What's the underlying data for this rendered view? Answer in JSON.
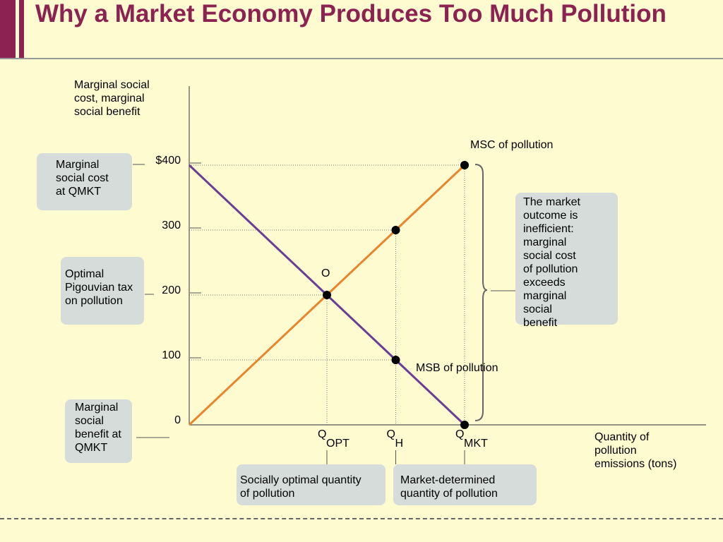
{
  "title": "Why a Market Economy Produces Too Much Pollution",
  "colors": {
    "msc": "#e8852f",
    "msb": "#6a3d96",
    "accent": "#8b2252",
    "box": "#d5dcd9",
    "background": "#fffbd0"
  },
  "chart_data": {
    "type": "line",
    "ylabel": "Marginal social\ncost, marginal\nsocial benefit",
    "xlabel": "Quantity of\npollution\n emissions (tons)",
    "y_ticks": [
      "$400",
      "300",
      "200",
      "100",
      "0"
    ],
    "y_tick_values": [
      400,
      300,
      200,
      100,
      0
    ],
    "ylim": [
      0,
      400
    ],
    "x_ticks": [
      {
        "q": "Q",
        "sub": "OPT",
        "x": 1
      },
      {
        "q": "Q",
        "sub": "H",
        "x": 1.5
      },
      {
        "q": "Q",
        "sub": "MKT",
        "x": 2
      }
    ],
    "xlim": [
      0,
      2
    ],
    "series": [
      {
        "name": "MSC of pollution",
        "x": [
          0,
          1,
          1.5,
          2
        ],
        "y": [
          0,
          200,
          300,
          400
        ]
      },
      {
        "name": "MSB of pollution",
        "x": [
          0,
          1,
          1.5,
          2
        ],
        "y": [
          400,
          200,
          100,
          0
        ]
      }
    ],
    "points": [
      {
        "x": 2,
        "y": 400
      },
      {
        "x": 1.5,
        "y": 300
      },
      {
        "x": 1,
        "y": 200,
        "label": "O"
      },
      {
        "x": 1.5,
        "y": 100
      },
      {
        "x": 2,
        "y": 0
      }
    ],
    "grid": false
  },
  "annotations": {
    "msc_at_qmkt": "Marginal\nsocial cost\nat QMKT",
    "pigouvian_tax": "Optimal\nPigouvian tax\non pollution",
    "msb_at_qmkt": "Marginal\nsocial\nbenefit at\nQMKT",
    "inefficient": "The market\noutcome is\ninefficient:\nmarginal\nsocial cost\nof pollution\nexceeds\nmarginal\nsocial\nbenefit",
    "socially_optimal": "Socially optimal quantity\nof pollution",
    "market_determined": "Market-determined\nquantity of pollution"
  }
}
